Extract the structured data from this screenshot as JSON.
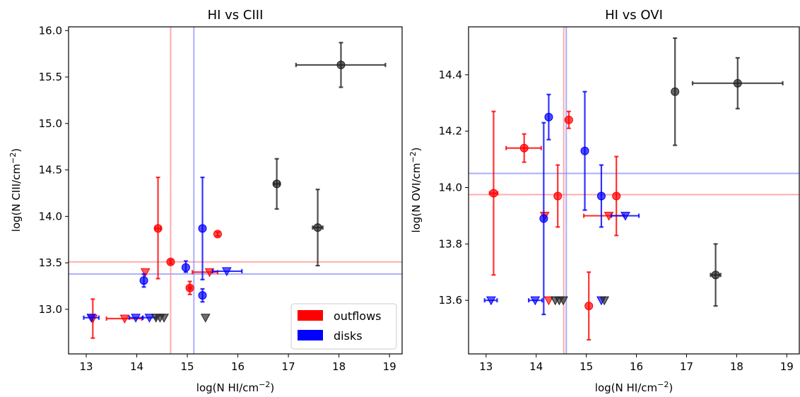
{
  "chart_data": [
    {
      "type": "scatter",
      "title": "HI vs CIII",
      "xlabel": "log(N HI/cm",
      "xlabel_sup": "−2",
      "xlabel_end": ")",
      "ylabel": "log(N CIII/cm",
      "ylabel_sup": "−2",
      "ylabel_end": ")",
      "xlim": [
        12.65,
        19.25
      ],
      "ylim": [
        12.52,
        16.04
      ],
      "xticks": [
        13,
        14,
        15,
        16,
        17,
        18,
        19
      ],
      "xtick_labels": [
        "13",
        "14",
        "15",
        "16",
        "17",
        "18",
        "19"
      ],
      "yticks": [
        13.0,
        13.5,
        14.0,
        14.5,
        15.0,
        15.5,
        16.0
      ],
      "ytick_labels": [
        "13.0",
        "13.5",
        "14.0",
        "14.5",
        "15.0",
        "15.5",
        "16.0"
      ],
      "hlines": [
        {
          "y": 13.51,
          "color": "#ff8080"
        },
        {
          "y": 13.38,
          "color": "#8080ff"
        }
      ],
      "vlines": [
        {
          "x": 14.67,
          "color": "#ff8080"
        },
        {
          "x": 15.13,
          "color": "#8080ff"
        }
      ],
      "legend": {
        "position": "lower-right",
        "entries": [
          {
            "label": "outflows",
            "color": "#ff0000"
          },
          {
            "label": "disks",
            "color": "#0000ff"
          }
        ]
      },
      "series": [
        {
          "name": "outflows",
          "color": "#ff0000",
          "points": [
            {
              "x": 14.42,
              "y": 13.87,
              "ylo": 13.33,
              "yhi": 14.42,
              "xerr": 0.05,
              "kind": "det"
            },
            {
              "x": 14.67,
              "y": 13.51,
              "yerr": 0.02,
              "kind": "det"
            },
            {
              "x": 15.05,
              "y": 13.23,
              "ylo": 13.16,
              "yhi": 13.3,
              "xerr": 0.03,
              "kind": "det"
            },
            {
              "x": 15.6,
              "y": 13.81,
              "yerr": 0.02,
              "kind": "det"
            },
            {
              "x": 13.13,
              "y": 12.9,
              "ylo": 12.69,
              "yhi": 13.11,
              "kind": "lim"
            },
            {
              "x": 13.76,
              "y": 12.9,
              "xlo": 13.4,
              "xhi": 14.1,
              "kind": "lim"
            },
            {
              "x": 14.17,
              "y": 13.4,
              "kind": "lim"
            },
            {
              "x": 15.44,
              "y": 13.4,
              "xlo": 15.1,
              "xhi": 15.6,
              "kind": "lim"
            }
          ]
        },
        {
          "name": "disks",
          "color": "#0000ff",
          "points": [
            {
              "x": 14.14,
              "y": 13.31,
              "ylo": 13.24,
              "yhi": 13.38,
              "kind": "det"
            },
            {
              "x": 14.97,
              "y": 13.45,
              "ylo": 13.4,
              "yhi": 13.52,
              "kind": "det"
            },
            {
              "x": 15.3,
              "y": 13.87,
              "ylo": 13.32,
              "yhi": 14.42,
              "kind": "det"
            },
            {
              "x": 15.3,
              "y": 13.15,
              "ylo": 13.08,
              "yhi": 13.22,
              "kind": "det"
            },
            {
              "x": 13.1,
              "y": 12.91,
              "xlo": 12.95,
              "xhi": 13.25,
              "kind": "lim"
            },
            {
              "x": 13.98,
              "y": 12.91,
              "xlo": 13.85,
              "xhi": 14.12,
              "kind": "lim"
            },
            {
              "x": 14.25,
              "y": 12.91,
              "xlo": 14.12,
              "xhi": 14.38,
              "kind": "lim"
            },
            {
              "x": 15.78,
              "y": 13.41,
              "xlo": 15.5,
              "xhi": 16.08,
              "kind": "lim"
            }
          ]
        },
        {
          "name": "",
          "color": "#222222",
          "points": [
            {
              "x": 18.04,
              "y": 15.63,
              "xlo": 17.15,
              "xhi": 18.92,
              "ylo": 15.39,
              "yhi": 15.87,
              "kind": "det"
            },
            {
              "x": 16.77,
              "y": 14.35,
              "ylo": 14.08,
              "yhi": 14.62,
              "xerr": 0.06,
              "kind": "det"
            },
            {
              "x": 17.58,
              "y": 13.88,
              "ylo": 13.47,
              "yhi": 14.29,
              "xerr": 0.1,
              "kind": "det"
            },
            {
              "x": 14.38,
              "y": 12.91,
              "kind": "lim"
            },
            {
              "x": 14.46,
              "y": 12.91,
              "kind": "lim"
            },
            {
              "x": 14.54,
              "y": 12.91,
              "kind": "lim"
            },
            {
              "x": 15.36,
              "y": 12.91,
              "kind": "lim"
            }
          ]
        }
      ]
    },
    {
      "type": "scatter",
      "title": "HI vs OVI",
      "xlabel": "log(N HI/cm",
      "xlabel_sup": "−2",
      "xlabel_end": ")",
      "ylabel": "log(N OVI/cm",
      "ylabel_sup": "−2",
      "ylabel_end": ")",
      "xlim": [
        12.65,
        19.25
      ],
      "ylim": [
        13.41,
        14.57
      ],
      "xticks": [
        13,
        14,
        15,
        16,
        17,
        18,
        19
      ],
      "xtick_labels": [
        "13",
        "14",
        "15",
        "16",
        "17",
        "18",
        "19"
      ],
      "yticks": [
        13.6,
        13.8,
        14.0,
        14.2,
        14.4
      ],
      "ytick_labels": [
        "13.6",
        "13.8",
        "14.0",
        "14.2",
        "14.4"
      ],
      "hlines": [
        {
          "y": 13.975,
          "color": "#ff8080"
        },
        {
          "y": 14.05,
          "color": "#8080ff"
        }
      ],
      "vlines": [
        {
          "x": 14.55,
          "color": "#ff8080"
        },
        {
          "x": 14.6,
          "color": "#8080ff"
        }
      ],
      "series": [
        {
          "name": "outflows",
          "color": "#ff0000",
          "points": [
            {
              "x": 13.15,
              "y": 13.98,
              "ylo": 13.69,
              "yhi": 14.27,
              "xerr": 0.08,
              "kind": "det"
            },
            {
              "x": 13.76,
              "y": 14.14,
              "ylo": 14.09,
              "yhi": 14.19,
              "xlo": 13.4,
              "xhi": 14.1,
              "kind": "det"
            },
            {
              "x": 14.43,
              "y": 13.97,
              "ylo": 13.86,
              "yhi": 14.08,
              "kind": "det"
            },
            {
              "x": 14.65,
              "y": 14.24,
              "ylo": 14.21,
              "yhi": 14.27,
              "kind": "det"
            },
            {
              "x": 15.05,
              "y": 13.58,
              "ylo": 13.46,
              "yhi": 13.7,
              "kind": "det"
            },
            {
              "x": 15.6,
              "y": 13.97,
              "ylo": 13.83,
              "yhi": 14.11,
              "kind": "det"
            },
            {
              "x": 14.17,
              "y": 13.9,
              "kind": "lim"
            },
            {
              "x": 14.25,
              "y": 13.6,
              "kind": "lim"
            },
            {
              "x": 15.45,
              "y": 13.9,
              "xlo": 14.95,
              "xhi": 15.75,
              "kind": "lim"
            }
          ]
        },
        {
          "name": "disks",
          "color": "#0000ff",
          "points": [
            {
              "x": 14.15,
              "y": 13.89,
              "ylo": 13.55,
              "yhi": 14.23,
              "kind": "det"
            },
            {
              "x": 14.25,
              "y": 14.25,
              "ylo": 14.17,
              "yhi": 14.33,
              "kind": "det"
            },
            {
              "x": 14.97,
              "y": 14.13,
              "ylo": 13.92,
              "yhi": 14.34,
              "kind": "det"
            },
            {
              "x": 15.3,
              "y": 13.97,
              "ylo": 13.86,
              "yhi": 14.08,
              "kind": "det"
            },
            {
              "x": 13.1,
              "y": 13.6,
              "xlo": 12.97,
              "xhi": 13.22,
              "kind": "lim"
            },
            {
              "x": 13.98,
              "y": 13.6,
              "xlo": 13.85,
              "xhi": 14.12,
              "kind": "lim"
            },
            {
              "x": 15.3,
              "y": 13.6,
              "kind": "lim"
            },
            {
              "x": 15.78,
              "y": 13.9,
              "xlo": 15.5,
              "xhi": 16.05,
              "kind": "lim"
            }
          ]
        },
        {
          "name": "",
          "color": "#222222",
          "points": [
            {
              "x": 18.02,
              "y": 14.37,
              "xlo": 17.12,
              "xhi": 18.92,
              "ylo": 14.28,
              "yhi": 14.46,
              "kind": "det"
            },
            {
              "x": 16.77,
              "y": 14.34,
              "ylo": 14.15,
              "yhi": 14.53,
              "kind": "det"
            },
            {
              "x": 17.58,
              "y": 13.69,
              "ylo": 13.58,
              "yhi": 13.8,
              "xerr": 0.1,
              "kind": "det"
            },
            {
              "x": 14.38,
              "y": 13.6,
              "kind": "lim"
            },
            {
              "x": 14.46,
              "y": 13.6,
              "kind": "lim"
            },
            {
              "x": 14.54,
              "y": 13.6,
              "kind": "lim"
            },
            {
              "x": 15.36,
              "y": 13.6,
              "kind": "lim"
            }
          ]
        }
      ]
    }
  ]
}
